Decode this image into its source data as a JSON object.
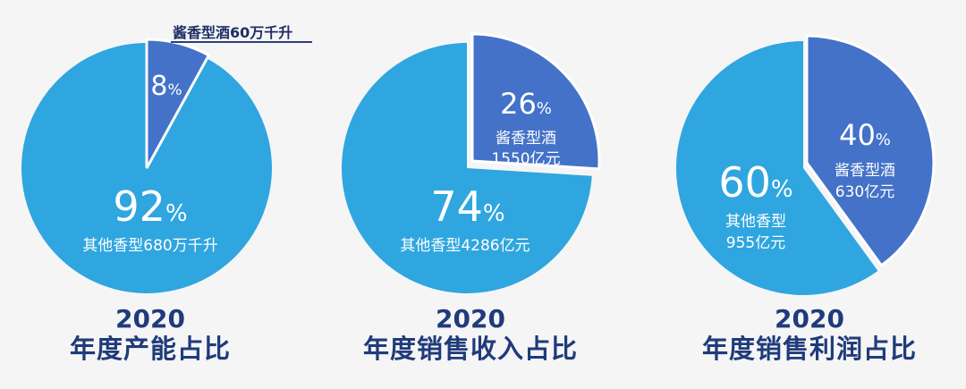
{
  "colors": {
    "major": "#2fa6df",
    "minor": "#4472c8",
    "label": "#ffffff",
    "caption": "#1f3b7a",
    "background": "#f5f5f6"
  },
  "chart_data": [
    {
      "type": "pie",
      "year": "2020",
      "title": "年度产能占比",
      "slices": [
        {
          "name": "酱香型酒60万千升",
          "value": 8,
          "pct": "8"
        },
        {
          "name": "其他香型680万千升",
          "value": 92,
          "pct": "92"
        }
      ]
    },
    {
      "type": "pie",
      "year": "2020",
      "title": "年度销售收入占比",
      "slices": [
        {
          "name": "酱香型酒",
          "amount": "1550亿元",
          "value": 26,
          "pct": "26"
        },
        {
          "name": "其他香型4286亿元",
          "value": 74,
          "pct": "74"
        }
      ]
    },
    {
      "type": "pie",
      "year": "2020",
      "title": "年度销售利润占比",
      "slices": [
        {
          "name": "酱香型酒",
          "amount": "630亿元",
          "value": 40,
          "pct": "40"
        },
        {
          "name": "其他香型",
          "amount": "955亿元",
          "value": 60,
          "pct": "60"
        }
      ]
    }
  ],
  "percent_sign": "%"
}
